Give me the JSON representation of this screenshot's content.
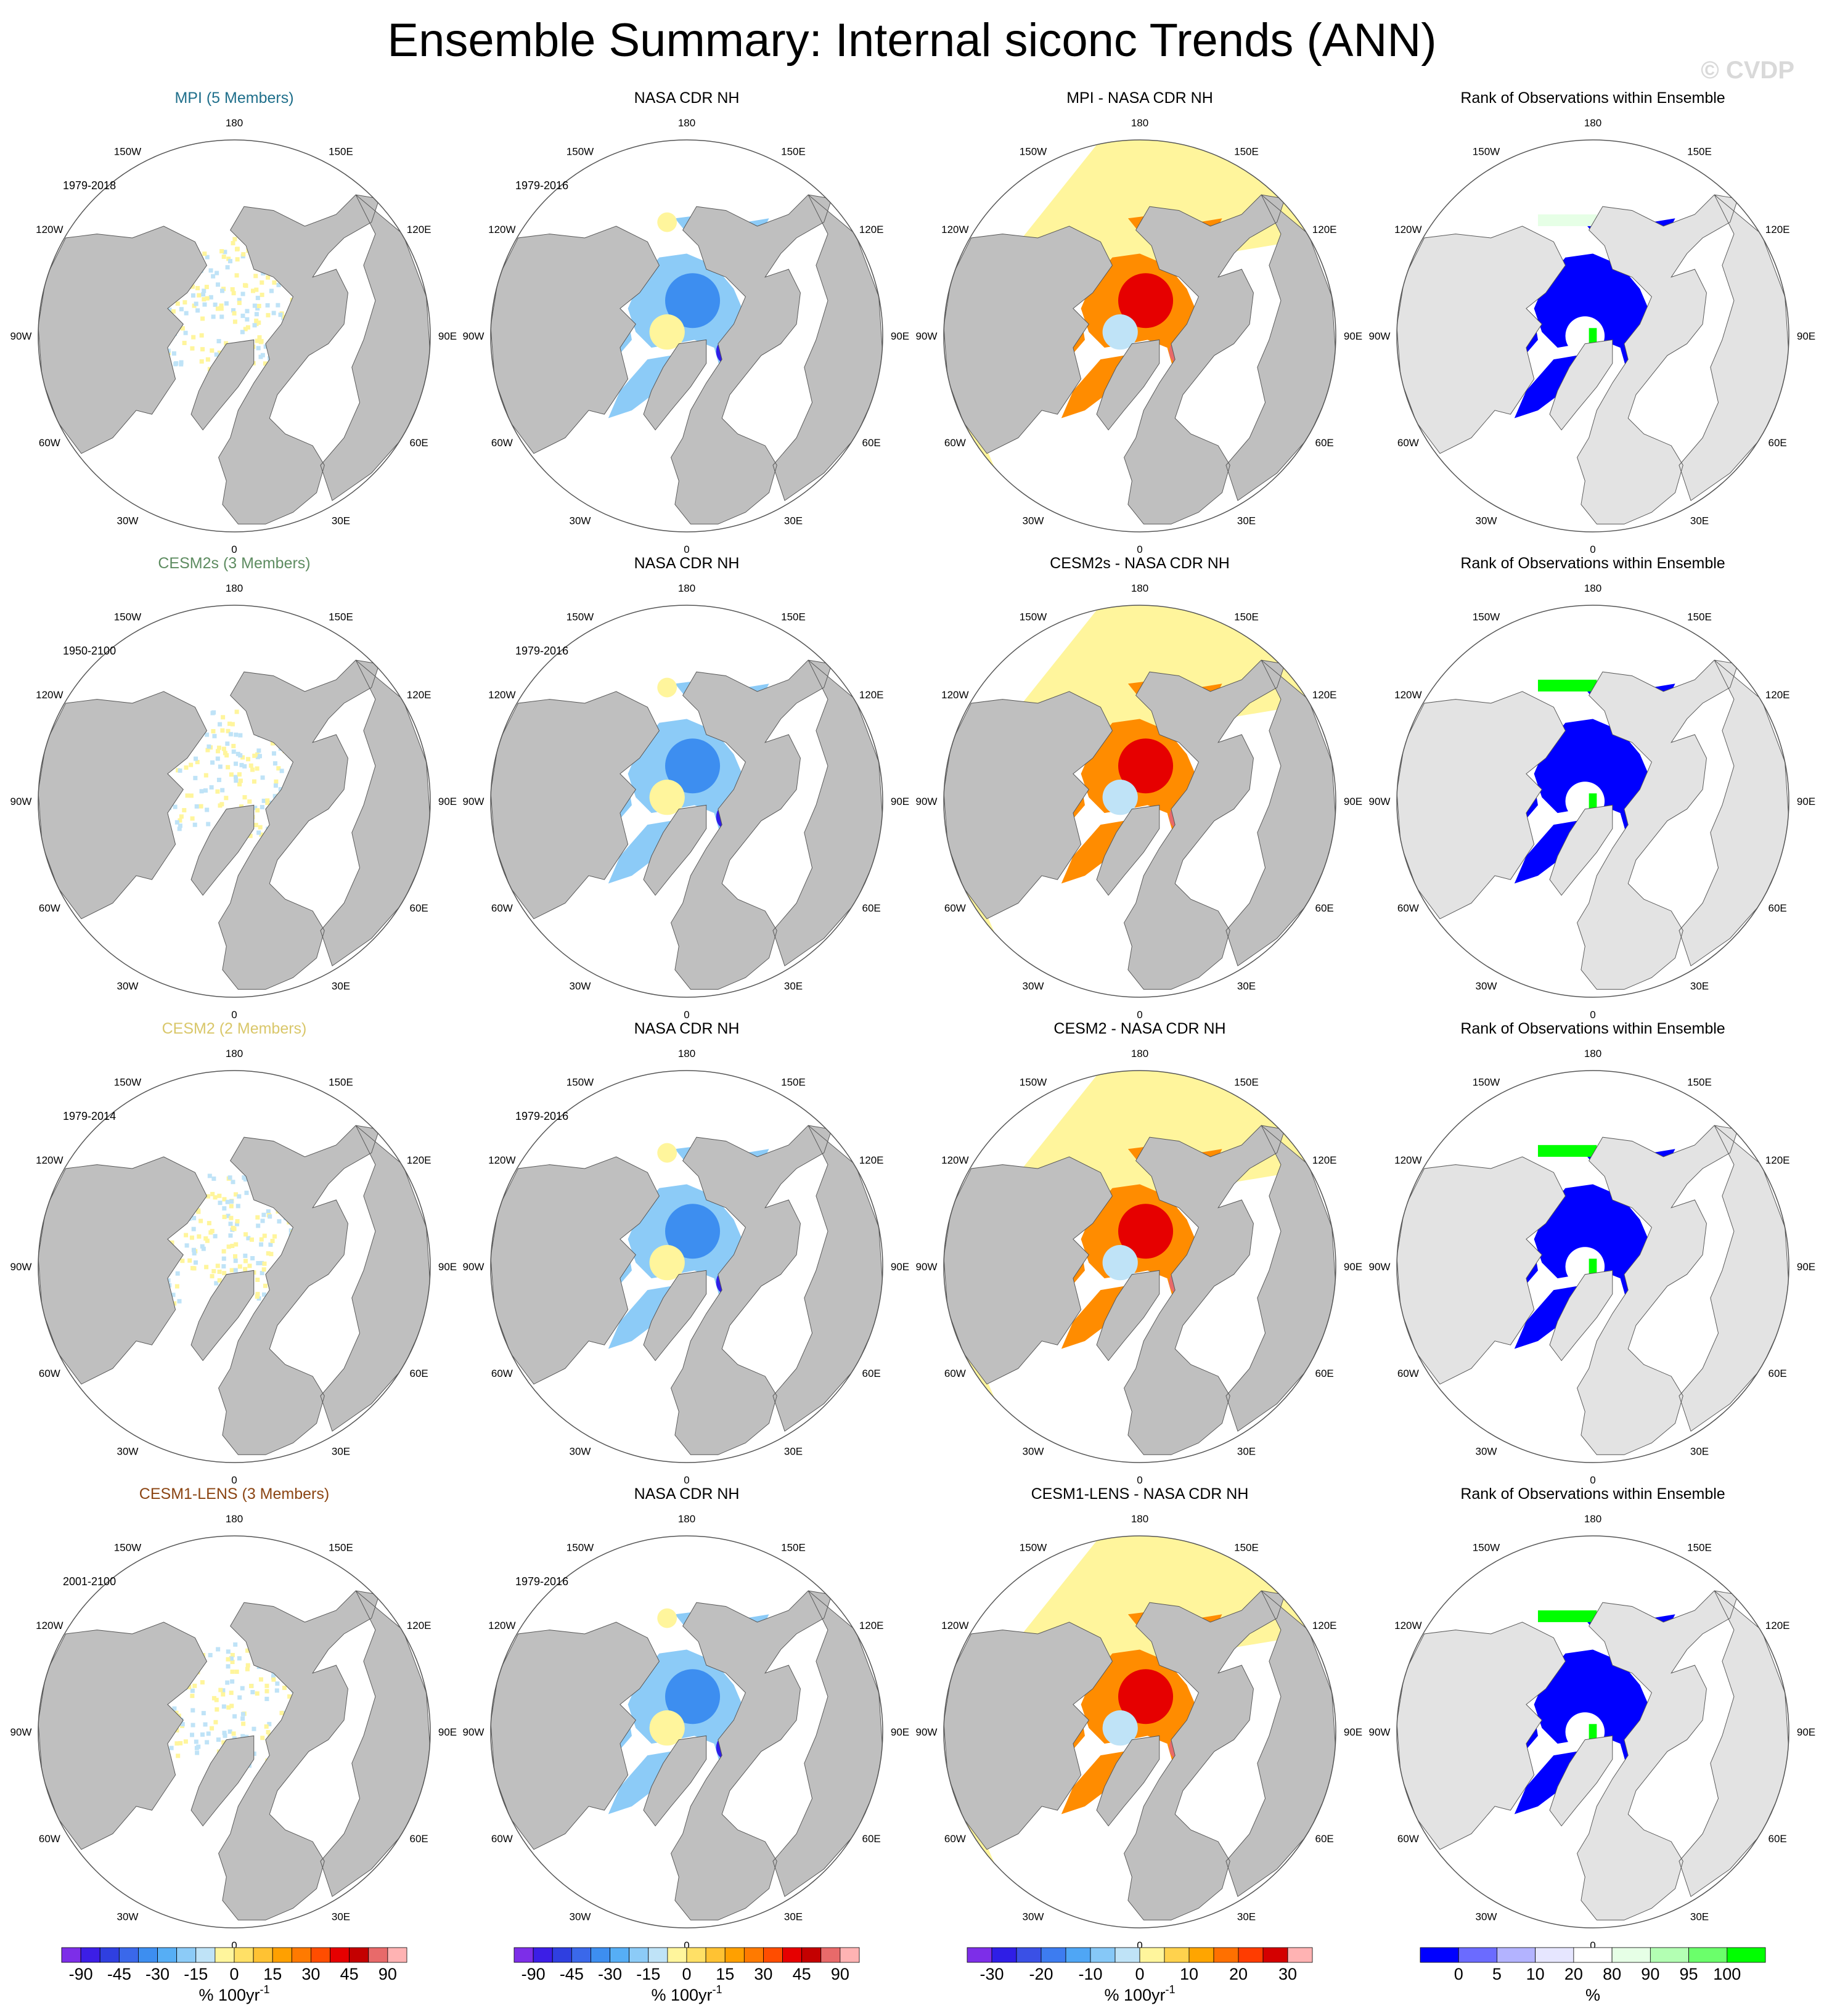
{
  "title": "Ensemble Summary: Internal siconc Trends (ANN)",
  "watermark": "© CVDP",
  "lon_labels": [
    "180",
    "150E",
    "120E",
    "90E",
    "60E",
    "30E",
    "0",
    "30W",
    "60W",
    "90W",
    "120W",
    "150W"
  ],
  "rows": [
    {
      "model_title": "MPI (5 Members)",
      "model_color": "#1f6f8b",
      "model_years": "1979-2018",
      "obs_title": "NASA CDR NH",
      "obs_years": "1979-2016",
      "diff_title": "MPI - NASA CDR NH",
      "rank_title": "Rank of Observations within Ensemble"
    },
    {
      "model_title": "CESM2s (3 Members)",
      "model_color": "#5e8c61",
      "model_years": "1950-2100",
      "obs_title": "NASA CDR NH",
      "obs_years": "1979-2016",
      "diff_title": "CESM2s - NASA CDR NH",
      "rank_title": "Rank of Observations within Ensemble"
    },
    {
      "model_title": "CESM2 (2 Members)",
      "model_color": "#d9c76a",
      "model_years": "1979-2014",
      "obs_title": "NASA CDR NH",
      "obs_years": "1979-2016",
      "diff_title": "CESM2 - NASA CDR NH",
      "rank_title": "Rank of Observations within Ensemble"
    },
    {
      "model_title": "CESM1-LENS (3 Members)",
      "model_color": "#8b4513",
      "model_years": "2001-2100",
      "obs_title": "NASA CDR NH",
      "obs_years": "1979-2016",
      "diff_title": "CESM1-LENS - NASA CDR NH",
      "rank_title": "Rank of Observations within Ensemble"
    }
  ],
  "colorbars": [
    {
      "labels": [
        "-90",
        "-45",
        "-30",
        "-15",
        "0",
        "15",
        "30",
        "45",
        "90"
      ],
      "unit": "% 100yr",
      "unit_sup": "-1",
      "colors": [
        "#7d2ee8",
        "#3c1ee6",
        "#2f3fe0",
        "#3a68ea",
        "#3d8ef0",
        "#56aef5",
        "#8ccbf7",
        "#bfe3f7",
        "#fff59c",
        "#ffe066",
        "#ffc233",
        "#ffa000",
        "#ff7a00",
        "#ff4d00",
        "#e60000",
        "#c40000",
        "#e86a6a",
        "#ffb3b3"
      ]
    },
    {
      "labels": [
        "-90",
        "-45",
        "-30",
        "-15",
        "0",
        "15",
        "30",
        "45",
        "90"
      ],
      "unit": "% 100yr",
      "unit_sup": "-1",
      "colors": [
        "#7d2ee8",
        "#3c1ee6",
        "#2f3fe0",
        "#3a68ea",
        "#3d8ef0",
        "#56aef5",
        "#8ccbf7",
        "#bfe3f7",
        "#fff59c",
        "#ffe066",
        "#ffc233",
        "#ffa000",
        "#ff7a00",
        "#ff4d00",
        "#e60000",
        "#c40000",
        "#e86a6a",
        "#ffb3b3"
      ]
    },
    {
      "labels": [
        "-30",
        "-20",
        "-10",
        "0",
        "10",
        "20",
        "30"
      ],
      "unit": "% 100yr",
      "unit_sup": "-1",
      "colors": [
        "#7d2ee8",
        "#2f1ee6",
        "#3a50e6",
        "#3d7cf0",
        "#4fa6f5",
        "#86c8f7",
        "#bfe3f7",
        "#fff59c",
        "#ffd24d",
        "#ffa500",
        "#ff7000",
        "#ff3c00",
        "#d40000",
        "#ffb3b3"
      ]
    },
    {
      "labels": [
        "0",
        "5",
        "10",
        "20",
        "80",
        "90",
        "95",
        "100"
      ],
      "unit": "%",
      "unit_sup": "",
      "colors": [
        "#0000ff",
        "#6b6bff",
        "#b3b3ff",
        "#e6e6ff",
        "#ffffff",
        "#e6ffe6",
        "#b3ffb3",
        "#6bff6b",
        "#00ff00"
      ]
    }
  ],
  "colors": {
    "land": "#bfbfbf",
    "rank_land": "#e3e3e3",
    "ocean": "#ffffff",
    "blue": "#0000ff",
    "green": "#00ff00"
  }
}
